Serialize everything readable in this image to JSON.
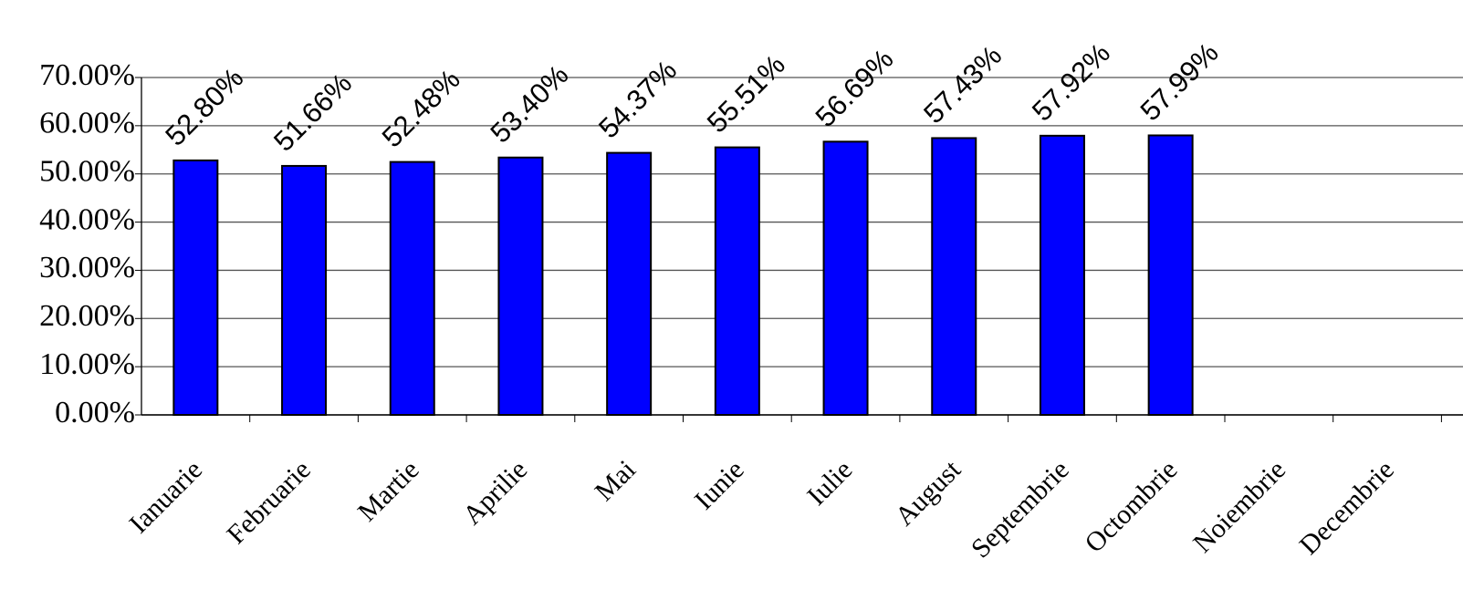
{
  "chart_data": {
    "type": "bar",
    "categories": [
      "Ianuarie",
      "Februarie",
      "Martie",
      "Aprilie",
      "Mai",
      "Iunie",
      "Iulie",
      "August",
      "Septembrie",
      "Octombrie",
      "Noiembrie",
      "Decembrie"
    ],
    "values": [
      52.8,
      51.66,
      52.48,
      53.4,
      54.37,
      55.51,
      56.69,
      57.43,
      57.92,
      57.99,
      null,
      null
    ],
    "value_labels": [
      "52.80%",
      "51.66%",
      "52.48%",
      "53.40%",
      "54.37%",
      "55.51%",
      "56.69%",
      "57.43%",
      "57.92%",
      "57.99%",
      null,
      null
    ],
    "color": "#0000ff",
    "ylim": [
      0,
      70
    ],
    "yticks": [
      {
        "value": 0,
        "label": "0.00%"
      },
      {
        "value": 10,
        "label": "10.00%"
      },
      {
        "value": 20,
        "label": "20.00%"
      },
      {
        "value": 30,
        "label": "30.00%"
      },
      {
        "value": 40,
        "label": "40.00%"
      },
      {
        "value": 50,
        "label": "50.00%"
      },
      {
        "value": 60,
        "label": "60.00%"
      },
      {
        "value": 70,
        "label": "70.00%"
      }
    ],
    "grid": true
  }
}
